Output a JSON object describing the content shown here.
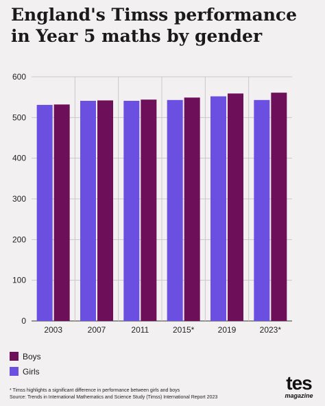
{
  "chart_data": {
    "type": "bar",
    "title": "England's Timss performance in Year 5 maths by gender",
    "categories": [
      "2003",
      "2007",
      "2011",
      "2015*",
      "2019",
      "2023*"
    ],
    "series": [
      {
        "name": "Girls",
        "color": "#6a4fe0",
        "values": [
          531,
          541,
          541,
          543,
          552,
          543
        ]
      },
      {
        "name": "Boys",
        "color": "#6e0f5a",
        "values": [
          532,
          542,
          544,
          549,
          559,
          561
        ]
      }
    ],
    "ylim": [
      0,
      600
    ],
    "yticks": [
      0,
      100,
      200,
      300,
      400,
      500,
      600
    ],
    "grid": true,
    "legend": [
      {
        "label": "Boys",
        "color": "#6e0f5a"
      },
      {
        "label": "Girls",
        "color": "#6a4fe0"
      }
    ],
    "legend_position": "bottom-left"
  },
  "footnote": {
    "note": "* Timss highlights a significant difference in performance between girls and boys",
    "source": "Source: Trends in International Mathematics and Science Study (Timss) International Report 2023"
  },
  "logo": {
    "main": "tes",
    "sub": "magazine"
  }
}
